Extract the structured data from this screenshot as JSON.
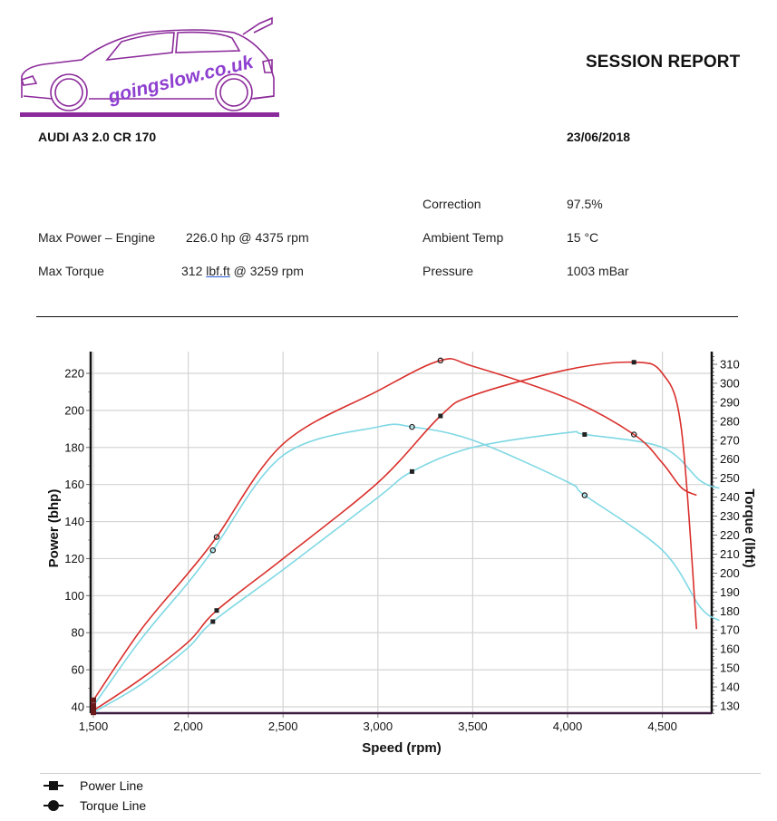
{
  "header": {
    "logo_text": "goingslow.co.uk",
    "title": "SESSION REPORT",
    "vehicle": "AUDI A3 2.0 CR 170",
    "date": "23/06/2018"
  },
  "summary": {
    "max_power_label": "Max Power – Engine",
    "max_power_value": "226.0 hp @ 4375 rpm",
    "max_torque_label": "Max Torque",
    "max_torque_value_num": "312",
    "max_torque_value_unit": "lbf.ft",
    "max_torque_value_rest": "@ 3259 rpm",
    "correction_label": "Correction",
    "correction_value": "97.5%",
    "ambient_label": "Ambient Temp",
    "ambient_value": "15 °C",
    "pressure_label": "Pressure",
    "pressure_value": "1003 mBar"
  },
  "legend": {
    "items": [
      {
        "label": "Power Line",
        "marker": "square"
      },
      {
        "label": "Torque Line",
        "marker": "circle"
      }
    ]
  },
  "colors": {
    "run1": "#d9302c",
    "run2": "#7fd8e4",
    "grid": "#d4d4d4",
    "axis": "#111111",
    "logo": "#8b2a9a"
  },
  "chart_data": {
    "type": "line",
    "title": "",
    "xlabel": "Speed (rpm)",
    "ylabel": "Power (bhp)",
    "y2label": "Torque (lbft)",
    "xlim": [
      1500,
      4800
    ],
    "ylim": [
      36,
      232
    ],
    "y2lim": [
      126,
      316
    ],
    "x_ticks": [
      "1,500",
      "2,000",
      "2,500",
      "3,000",
      "3,500",
      "4,000",
      "4,500"
    ],
    "y_ticks": [
      40,
      60,
      80,
      100,
      120,
      140,
      160,
      180,
      200,
      220
    ],
    "y2_ticks": [
      130,
      140,
      150,
      160,
      170,
      180,
      190,
      200,
      210,
      220,
      230,
      240,
      250,
      260,
      270,
      280,
      290,
      300,
      310
    ],
    "grid": true,
    "legend_position": "bottom",
    "series": [
      {
        "name": "Power Line (red run)",
        "axis": "left",
        "x": [
          1500,
          1750,
          2000,
          2150,
          2500,
          3000,
          3330,
          3500,
          4000,
          4350,
          4500,
          4600,
          4680
        ],
        "values": [
          38,
          55,
          75,
          92,
          120,
          161,
          197,
          208,
          222,
          226,
          220,
          190,
          82
        ]
      },
      {
        "name": "Torque Line (red run)",
        "axis": "right",
        "x": [
          1500,
          1750,
          2000,
          2150,
          2500,
          3000,
          3330,
          3500,
          4000,
          4350,
          4500,
          4600,
          4680
        ],
        "values": [
          133,
          170,
          200,
          219,
          268,
          296,
          312,
          309,
          292,
          273,
          258,
          245,
          241
        ]
      },
      {
        "name": "Power Line (cyan run)",
        "axis": "left",
        "x": [
          1500,
          1750,
          2000,
          2130,
          2500,
          3000,
          3180,
          3500,
          4000,
          4090,
          4500,
          4700,
          4800
        ],
        "values": [
          37,
          52,
          72,
          86,
          114,
          153,
          167,
          180,
          188,
          187,
          180,
          162,
          158
        ]
      },
      {
        "name": "Torque Line (cyan run)",
        "axis": "right",
        "x": [
          1500,
          1750,
          2000,
          2130,
          2500,
          3000,
          3180,
          3500,
          4000,
          4090,
          4500,
          4700,
          4800
        ],
        "values": [
          130,
          165,
          195,
          212,
          262,
          277,
          277,
          270,
          248,
          241,
          212,
          182,
          175
        ]
      }
    ],
    "markers": [
      {
        "series": "Power Line (red run)",
        "x": 4350,
        "y": 226,
        "shape": "square"
      },
      {
        "series": "Torque Line (red run)",
        "x": 3330,
        "y": 312,
        "shape": "circle"
      }
    ]
  }
}
